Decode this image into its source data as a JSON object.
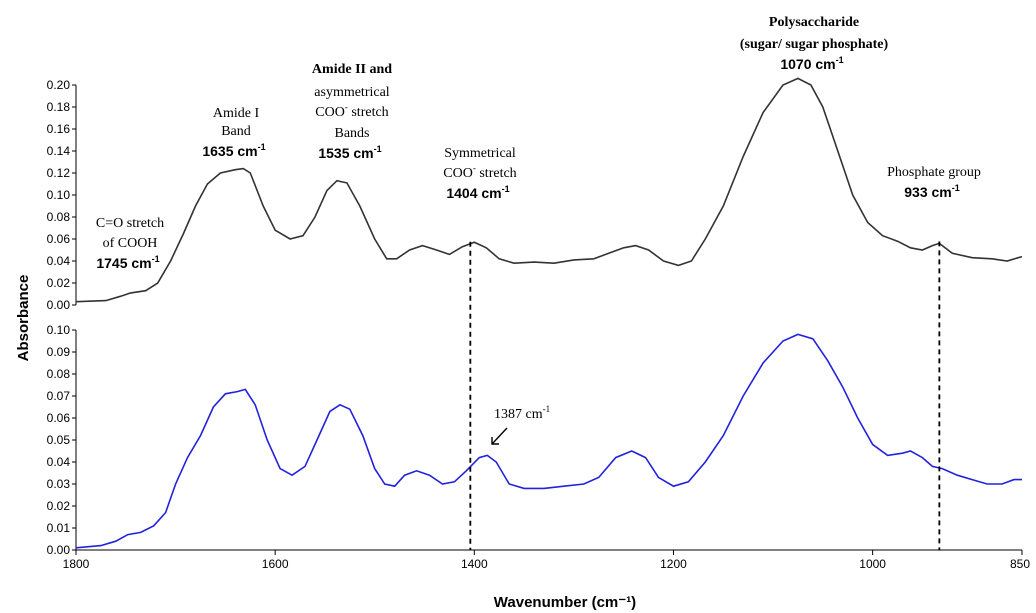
{
  "chart_data": {
    "type": "line",
    "xlabel": "Wavenumber (cm⁻¹)",
    "ylabel": "Absorbance",
    "xlim": [
      1800,
      850
    ],
    "x_reversed": true,
    "x_ticks": [
      1800,
      1600,
      1400,
      1200,
      1000,
      850
    ],
    "x_tick_labels": [
      "1800",
      "1600",
      "1400",
      "1200",
      "1000",
      "850"
    ],
    "grid": false,
    "panels": [
      {
        "position": "top",
        "ylim": [
          0,
          0.2
        ],
        "y_ticks": [
          "0.00",
          "0.02",
          "0.04",
          "0.06",
          "0.08",
          "0.10",
          "0.12",
          "0.14",
          "0.16",
          "0.18",
          "0.20"
        ],
        "series": [
          {
            "color": "#333333",
            "points": [
              [
                1800,
                0.003
              ],
              [
                1770,
                0.004
              ],
              [
                1755,
                0.008
              ],
              [
                1745,
                0.011
              ],
              [
                1730,
                0.013
              ],
              [
                1718,
                0.02
              ],
              [
                1705,
                0.04
              ],
              [
                1692,
                0.065
              ],
              [
                1680,
                0.09
              ],
              [
                1668,
                0.11
              ],
              [
                1655,
                0.12
              ],
              [
                1640,
                0.123
              ],
              [
                1632,
                0.124
              ],
              [
                1625,
                0.12
              ],
              [
                1612,
                0.09
              ],
              [
                1600,
                0.068
              ],
              [
                1585,
                0.06
              ],
              [
                1572,
                0.063
              ],
              [
                1560,
                0.08
              ],
              [
                1548,
                0.104
              ],
              [
                1538,
                0.113
              ],
              [
                1528,
                0.111
              ],
              [
                1515,
                0.09
              ],
              [
                1500,
                0.06
              ],
              [
                1488,
                0.042
              ],
              [
                1478,
                0.042
              ],
              [
                1465,
                0.05
              ],
              [
                1452,
                0.054
              ],
              [
                1438,
                0.05
              ],
              [
                1425,
                0.046
              ],
              [
                1412,
                0.053
              ],
              [
                1400,
                0.057
              ],
              [
                1388,
                0.052
              ],
              [
                1375,
                0.042
              ],
              [
                1360,
                0.038
              ],
              [
                1340,
                0.039
              ],
              [
                1320,
                0.038
              ],
              [
                1300,
                0.041
              ],
              [
                1280,
                0.042
              ],
              [
                1265,
                0.047
              ],
              [
                1250,
                0.052
              ],
              [
                1238,
                0.054
              ],
              [
                1225,
                0.05
              ],
              [
                1210,
                0.04
              ],
              [
                1195,
                0.036
              ],
              [
                1182,
                0.04
              ],
              [
                1168,
                0.06
              ],
              [
                1150,
                0.09
              ],
              [
                1130,
                0.135
              ],
              [
                1110,
                0.175
              ],
              [
                1090,
                0.2
              ],
              [
                1075,
                0.206
              ],
              [
                1062,
                0.2
              ],
              [
                1050,
                0.18
              ],
              [
                1035,
                0.14
              ],
              [
                1020,
                0.1
              ],
              [
                1005,
                0.075
              ],
              [
                990,
                0.063
              ],
              [
                975,
                0.058
              ],
              [
                962,
                0.052
              ],
              [
                950,
                0.05
              ],
              [
                940,
                0.054
              ],
              [
                933,
                0.056
              ],
              [
                920,
                0.047
              ],
              [
                900,
                0.043
              ],
              [
                880,
                0.042
              ],
              [
                865,
                0.04
              ],
              [
                850,
                0.044
              ]
            ]
          }
        ]
      },
      {
        "position": "bottom",
        "ylim": [
          0,
          0.1
        ],
        "y_ticks": [
          "0.00",
          "0.01",
          "0.02",
          "0.03",
          "0.04",
          "0.05",
          "0.06",
          "0.07",
          "0.08",
          "0.09",
          "0.10"
        ],
        "series": [
          {
            "color": "#2222dd",
            "points": [
              [
                1800,
                0.001
              ],
              [
                1775,
                0.002
              ],
              [
                1760,
                0.004
              ],
              [
                1748,
                0.007
              ],
              [
                1735,
                0.008
              ],
              [
                1722,
                0.011
              ],
              [
                1710,
                0.017
              ],
              [
                1700,
                0.03
              ],
              [
                1688,
                0.042
              ],
              [
                1675,
                0.052
              ],
              [
                1662,
                0.065
              ],
              [
                1650,
                0.071
              ],
              [
                1638,
                0.072
              ],
              [
                1630,
                0.073
              ],
              [
                1620,
                0.066
              ],
              [
                1608,
                0.05
              ],
              [
                1595,
                0.037
              ],
              [
                1583,
                0.034
              ],
              [
                1570,
                0.038
              ],
              [
                1558,
                0.05
              ],
              [
                1545,
                0.063
              ],
              [
                1535,
                0.066
              ],
              [
                1525,
                0.064
              ],
              [
                1512,
                0.052
              ],
              [
                1500,
                0.037
              ],
              [
                1490,
                0.03
              ],
              [
                1480,
                0.029
              ],
              [
                1470,
                0.034
              ],
              [
                1458,
                0.036
              ],
              [
                1445,
                0.034
              ],
              [
                1432,
                0.03
              ],
              [
                1420,
                0.031
              ],
              [
                1408,
                0.036
              ],
              [
                1395,
                0.042
              ],
              [
                1387,
                0.043
              ],
              [
                1378,
                0.04
              ],
              [
                1365,
                0.03
              ],
              [
                1350,
                0.028
              ],
              [
                1330,
                0.028
              ],
              [
                1310,
                0.029
              ],
              [
                1290,
                0.03
              ],
              [
                1275,
                0.033
              ],
              [
                1258,
                0.042
              ],
              [
                1242,
                0.045
              ],
              [
                1228,
                0.042
              ],
              [
                1215,
                0.033
              ],
              [
                1200,
                0.029
              ],
              [
                1185,
                0.031
              ],
              [
                1168,
                0.04
              ],
              [
                1150,
                0.052
              ],
              [
                1130,
                0.07
              ],
              [
                1110,
                0.085
              ],
              [
                1090,
                0.095
              ],
              [
                1075,
                0.098
              ],
              [
                1060,
                0.096
              ],
              [
                1045,
                0.086
              ],
              [
                1030,
                0.074
              ],
              [
                1015,
                0.06
              ],
              [
                1000,
                0.048
              ],
              [
                985,
                0.043
              ],
              [
                970,
                0.044
              ],
              [
                962,
                0.045
              ],
              [
                950,
                0.042
              ],
              [
                940,
                0.038
              ],
              [
                930,
                0.037
              ],
              [
                915,
                0.034
              ],
              [
                900,
                0.032
              ],
              [
                885,
                0.03
              ],
              [
                870,
                0.03
              ],
              [
                858,
                0.032
              ],
              [
                850,
                0.032
              ]
            ]
          }
        ]
      }
    ],
    "reference_lines": [
      1404,
      933
    ],
    "annotations": {
      "co_stretch": [
        "C=O stretch",
        "of COOH",
        "1745 cm"
      ],
      "amide1": [
        "Amide I",
        "Band",
        "1635 cm"
      ],
      "amide2": [
        "Amide II and",
        "asymmetrical",
        "COO",
        " stretch",
        "Bands",
        "1535 cm"
      ],
      "sym": [
        "Symmetrical",
        "COO",
        " stretch",
        "1404 cm"
      ],
      "poly": [
        "Polysaccharide",
        "(sugar/ sugar phosphate)",
        "1070 cm"
      ],
      "phos": [
        "Phosphate group",
        "933 cm"
      ],
      "peak1387": [
        "1387 cm"
      ],
      "sup_minus": "-",
      "sup_neg1": "-1"
    }
  }
}
